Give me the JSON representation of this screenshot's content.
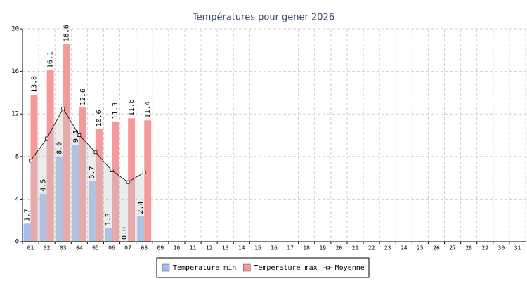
{
  "chart_data": {
    "type": "bar",
    "title": "Températures pour gener 2026",
    "categories": [
      "01",
      "02",
      "03",
      "04",
      "05",
      "06",
      "07",
      "08",
      "09",
      "10",
      "11",
      "12",
      "13",
      "14",
      "15",
      "16",
      "17",
      "18",
      "19",
      "20",
      "21",
      "22",
      "23",
      "24",
      "25",
      "26",
      "27",
      "28",
      "29",
      "30",
      "31"
    ],
    "series": [
      {
        "name": "Temperature min",
        "color": "#a3bdf0",
        "type": "bar",
        "values": [
          1.7,
          4.5,
          8.0,
          9.1,
          5.7,
          1.3,
          0.0,
          2.4,
          null,
          null,
          null,
          null,
          null,
          null,
          null,
          null,
          null,
          null,
          null,
          null,
          null,
          null,
          null,
          null,
          null,
          null,
          null,
          null,
          null,
          null,
          null
        ],
        "value_labels": [
          "1.7",
          "4.5",
          "8.0",
          "9.1",
          "5.7",
          "1.3",
          "0.0",
          "2.4",
          null,
          null,
          null,
          null,
          null,
          null,
          null,
          null,
          null,
          null,
          null,
          null,
          null,
          null,
          null,
          null,
          null,
          null,
          null,
          null,
          null,
          null,
          null
        ]
      },
      {
        "name": "Temperature max",
        "color": "#f59a9a",
        "type": "bar",
        "values": [
          13.8,
          16.1,
          18.6,
          12.6,
          10.6,
          11.3,
          11.6,
          11.4,
          null,
          null,
          null,
          null,
          null,
          null,
          null,
          null,
          null,
          null,
          null,
          null,
          null,
          null,
          null,
          null,
          null,
          null,
          null,
          null,
          null,
          null,
          null
        ],
        "value_labels": [
          "13.8",
          "16.1",
          "18.6",
          "12.6",
          "10.6",
          "11.3",
          "11.6",
          "11.4",
          null,
          null,
          null,
          null,
          null,
          null,
          null,
          null,
          null,
          null,
          null,
          null,
          null,
          null,
          null,
          null,
          null,
          null,
          null,
          null,
          null,
          null,
          null
        ]
      },
      {
        "name": "Moyenne",
        "color": "#000000",
        "type": "line",
        "values": [
          7.6,
          9.7,
          12.5,
          10.0,
          8.4,
          6.7,
          5.6,
          6.5,
          null,
          null,
          null,
          null,
          null,
          null,
          null,
          null,
          null,
          null,
          null,
          null,
          null,
          null,
          null,
          null,
          null,
          null,
          null,
          null,
          null,
          null,
          null
        ]
      }
    ],
    "ylim": [
      0,
      20
    ],
    "yticks": [
      0,
      4,
      8,
      12,
      16,
      20
    ],
    "grid": true,
    "legend": "bottom"
  }
}
